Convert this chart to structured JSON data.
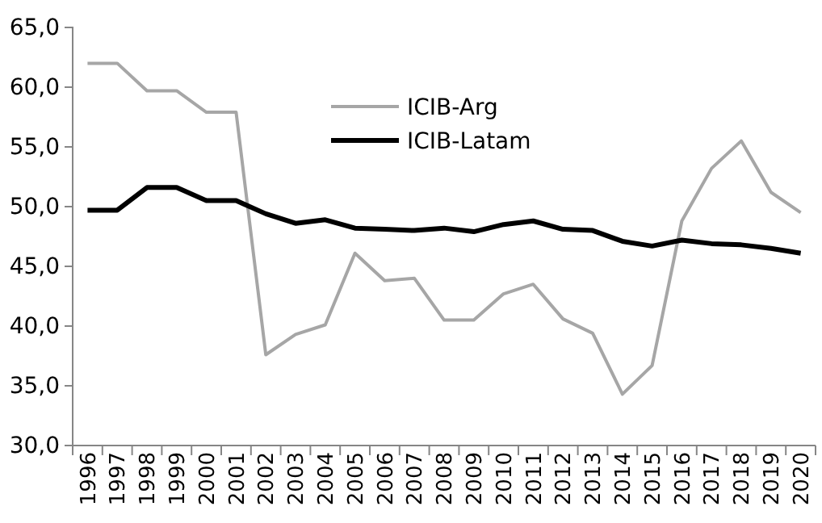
{
  "chart_data": {
    "type": "line",
    "categories": [
      "1996",
      "1997",
      "1998",
      "1999",
      "2000",
      "2001",
      "2002",
      "2003",
      "2004",
      "2005",
      "2006",
      "2007",
      "2008",
      "2009",
      "2010",
      "2011",
      "2012",
      "2013",
      "2014",
      "2015",
      "2016",
      "2017",
      "2018",
      "2019",
      "2020"
    ],
    "series": [
      {
        "name": "ICIB-Arg",
        "color": "#a6a6a6",
        "values": [
          62.0,
          62.0,
          59.7,
          59.7,
          57.9,
          57.9,
          37.6,
          39.3,
          40.1,
          46.1,
          43.8,
          44.0,
          40.5,
          40.5,
          42.7,
          43.5,
          40.6,
          39.4,
          34.3,
          36.7,
          48.8,
          53.2,
          55.5,
          51.2,
          49.5
        ]
      },
      {
        "name": "ICIB-Latam",
        "color": "#000000",
        "values": [
          49.7,
          49.7,
          51.6,
          51.6,
          50.5,
          50.5,
          49.4,
          48.6,
          48.9,
          48.2,
          48.1,
          48.0,
          48.2,
          47.9,
          48.5,
          48.8,
          48.1,
          48.0,
          47.1,
          46.7,
          47.2,
          46.9,
          46.8,
          46.5,
          46.1
        ]
      }
    ],
    "ylim": [
      30,
      65
    ],
    "yticks": [
      {
        "value": 30,
        "label": "30,0"
      },
      {
        "value": 35,
        "label": "35,0"
      },
      {
        "value": 40,
        "label": "40,0"
      },
      {
        "value": 45,
        "label": "45,0"
      },
      {
        "value": 50,
        "label": "50,0"
      },
      {
        "value": 55,
        "label": "55,0"
      },
      {
        "value": 60,
        "label": "60,0"
      },
      {
        "value": 65,
        "label": "65,0"
      }
    ],
    "legend": "top",
    "grid": false,
    "marker": "none",
    "line_style": "solid"
  }
}
